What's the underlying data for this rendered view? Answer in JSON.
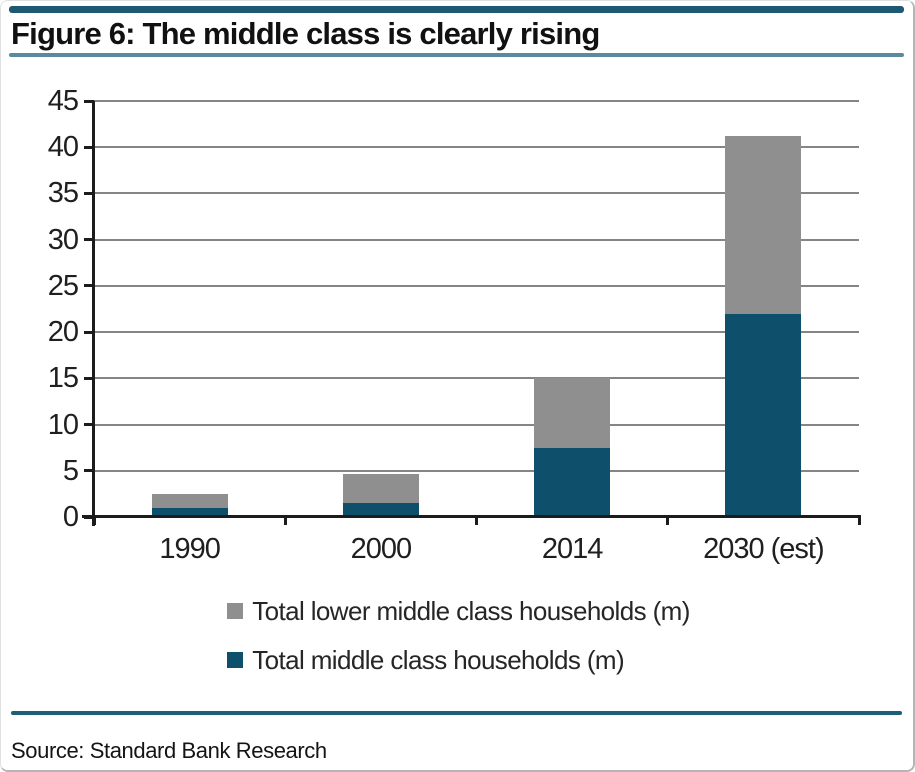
{
  "figure_title": "Figure 6: The middle class is clearly rising",
  "source_line": "Source: Standard Bank Research",
  "chart_data": {
    "type": "bar",
    "stacked": true,
    "title": "Figure 6: The middle class is clearly rising",
    "categories": [
      "1990",
      "2000",
      "2014",
      "2030 (est)"
    ],
    "series": [
      {
        "name": "Total middle class households (m)",
        "key": "middle-class",
        "color": "#0e4f6b",
        "values": [
          1.0,
          1.5,
          7.5,
          22.0
        ]
      },
      {
        "name": "Total lower middle class households (m)",
        "key": "lower-middle-class",
        "color": "#8f8f8f",
        "values": [
          1.5,
          3.2,
          7.5,
          19.2
        ]
      }
    ],
    "stack_totals": [
      2.5,
      4.7,
      15.0,
      41.2
    ],
    "xlabel": "",
    "ylabel": "",
    "ylim": [
      0,
      45
    ],
    "yticks": [
      0,
      5,
      10,
      15,
      20,
      25,
      30,
      35,
      40,
      45
    ],
    "grid": "horizontal",
    "legend_position": "bottom-stacked-rows"
  },
  "legend": {
    "items": [
      {
        "label": "Total lower middle class households (m)",
        "swatch_color": "#8f8f8f",
        "series_key": "lower-middle-class"
      },
      {
        "label": "Total middle class households (m)",
        "swatch_color": "#0e4f6b",
        "series_key": "middle-class"
      }
    ]
  },
  "colors": {
    "accent_bar_top": "#1d5972",
    "accent_rule_light": "#5d89a0",
    "accent_rule_bottom": "#1d5f79",
    "bar_teal": "#0e4f6b",
    "bar_gray": "#8f8f8f",
    "gridline": "#858585",
    "axis": "#1c1c1c"
  }
}
